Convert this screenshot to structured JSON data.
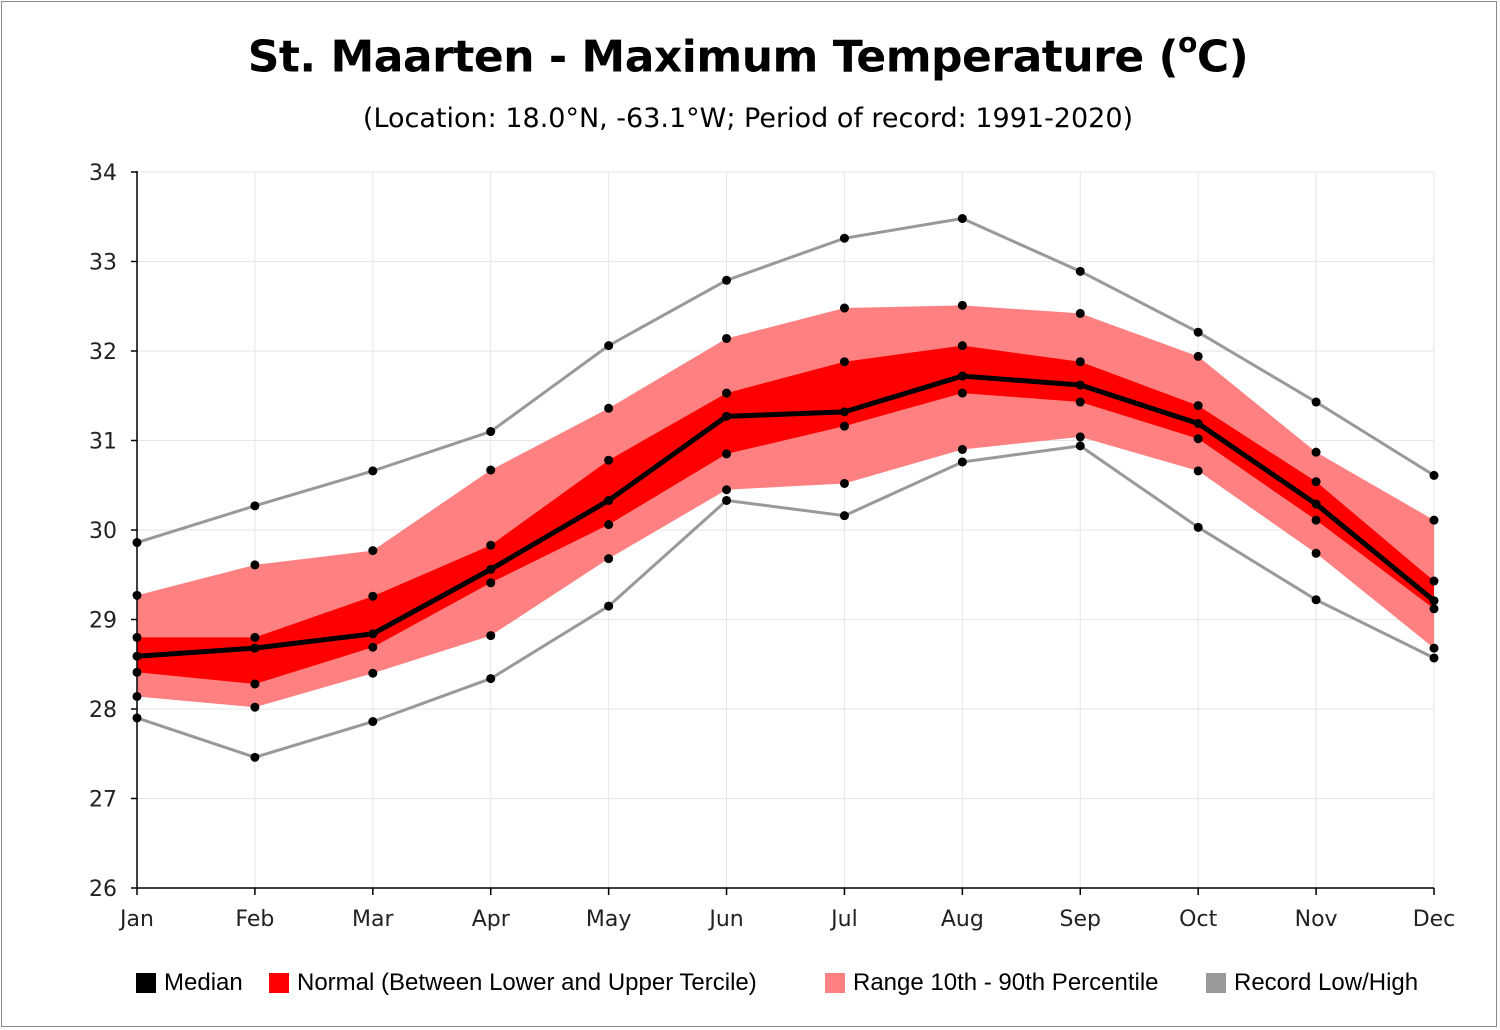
{
  "title": {
    "main": "St. Maarten - Maximum Temperature (",
    "sup": "o",
    "end": "C)"
  },
  "subtitle": "(Location: 18.0°N, -63.1°W; Period of record: 1991-2020)",
  "colors": {
    "median": "#000000",
    "normal": "#ff0000",
    "range": "#ff8080",
    "record": "#999999",
    "grid": "#e6e6e6",
    "axis": "#000000"
  },
  "chart_data": {
    "type": "area",
    "title": "St. Maarten - Maximum Temperature (oC)",
    "subtitle": "(Location: 18.0°N, -63.1°W; Period of record: 1991-2020)",
    "categories": [
      "Jan",
      "Feb",
      "Mar",
      "Apr",
      "May",
      "Jun",
      "Jul",
      "Aug",
      "Sep",
      "Oct",
      "Nov",
      "Dec"
    ],
    "ylim": [
      26,
      34
    ],
    "yticks": [
      26,
      27,
      28,
      29,
      30,
      31,
      32,
      33,
      34
    ],
    "grid": true,
    "legend_position": "bottom",
    "series": [
      {
        "name": "Record Low/High",
        "kind": "record_high",
        "values": [
          29.86,
          30.27,
          30.66,
          31.1,
          32.06,
          32.79,
          33.26,
          33.48,
          32.89,
          32.21,
          31.43,
          30.61
        ]
      },
      {
        "name": "Range 10th - 90th Percentile",
        "kind": "p90",
        "values": [
          29.27,
          29.61,
          29.77,
          30.67,
          31.36,
          32.14,
          32.48,
          32.51,
          32.42,
          31.94,
          30.87,
          30.11
        ]
      },
      {
        "name": "Normal (Between Lower and Upper Tercile)",
        "kind": "upper_tercile",
        "values": [
          28.8,
          28.8,
          29.26,
          29.83,
          30.78,
          31.53,
          31.88,
          32.06,
          31.88,
          31.39,
          30.54,
          29.43
        ]
      },
      {
        "name": "Median",
        "kind": "median",
        "values": [
          28.59,
          28.68,
          28.84,
          29.56,
          30.33,
          31.27,
          31.32,
          31.72,
          31.62,
          31.19,
          30.29,
          29.21
        ]
      },
      {
        "name": "Normal (Between Lower and Upper Tercile)",
        "kind": "lower_tercile",
        "values": [
          28.41,
          28.28,
          28.69,
          29.41,
          30.06,
          30.85,
          31.16,
          31.53,
          31.43,
          31.02,
          30.11,
          29.12
        ]
      },
      {
        "name": "Range 10th - 90th Percentile",
        "kind": "p10",
        "values": [
          28.14,
          28.02,
          28.4,
          28.82,
          29.68,
          30.45,
          30.52,
          30.9,
          31.04,
          30.66,
          29.74,
          28.68
        ]
      },
      {
        "name": "Record Low/High",
        "kind": "record_low",
        "values": [
          27.9,
          27.46,
          27.86,
          28.34,
          29.15,
          30.33,
          30.16,
          30.76,
          30.94,
          30.03,
          29.22,
          28.57
        ]
      }
    ]
  },
  "legend": [
    {
      "label": "Median",
      "color": "#000000"
    },
    {
      "label": "Normal (Between Lower and Upper Tercile)",
      "color": "#ff0000"
    },
    {
      "label": "Range 10th - 90th Percentile",
      "color": "#ff8080"
    },
    {
      "label": "Record Low/High",
      "color": "#999999"
    }
  ]
}
